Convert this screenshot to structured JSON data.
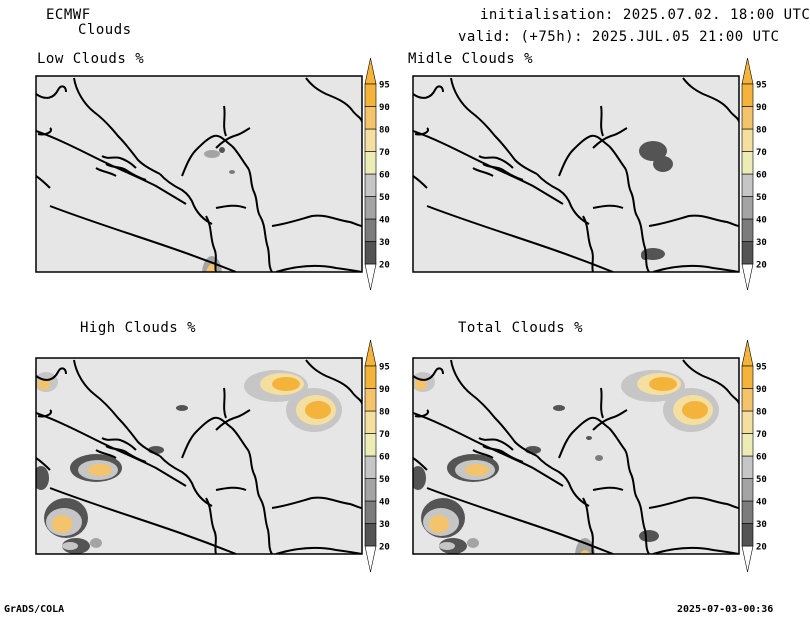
{
  "header": {
    "model": "ECMWF",
    "product": "Clouds",
    "init": "initialisation: 2025.07.02. 18:00 UTC",
    "valid": "valid: (+75h): 2025.JUL.05 21:00 UTC"
  },
  "panels": [
    {
      "id": "low",
      "title": "Low Clouds %"
    },
    {
      "id": "mid",
      "title": "Midle Clouds %"
    },
    {
      "id": "high",
      "title": "High Clouds %"
    },
    {
      "id": "total",
      "title": "Total Clouds %"
    }
  ],
  "colorbar": {
    "levels": [
      "20",
      "30",
      "40",
      "50",
      "60",
      "70",
      "80",
      "90",
      "95"
    ],
    "colors": {
      "lt20": "#ffffff",
      "c20": "#545454",
      "c30": "#7c7c7c",
      "c40": "#a4a4a4",
      "c50": "#c6c6c6",
      "c60": "#ececb4",
      "c70": "#f4dea0",
      "c80": "#f4c46c",
      "c90": "#f4b43c",
      "gt95": "#f4b43c"
    }
  },
  "map_background": "#e6e6e6",
  "footer": {
    "left": "GrADS/COLA",
    "right": "2025-07-03-00:36"
  }
}
